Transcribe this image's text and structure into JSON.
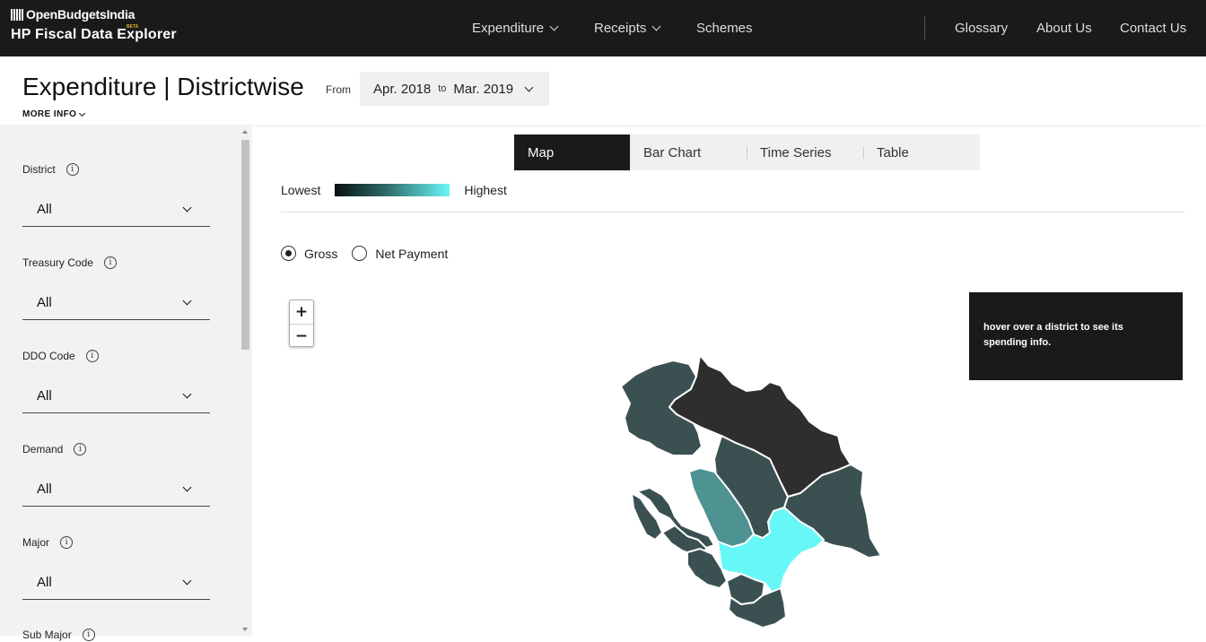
{
  "brand": {
    "name": "OpenBudgetsIndia",
    "badge": "BETA",
    "product": "HP Fiscal Data Explorer"
  },
  "nav": {
    "expenditure": "Expenditure",
    "receipts": "Receipts",
    "schemes": "Schemes",
    "glossary": "Glossary",
    "about": "About Us",
    "contact": "Contact Us"
  },
  "header": {
    "title": "Expenditure | Districtwise",
    "from_label": "From",
    "date_from": "Apr. 2018",
    "date_to_label": "to",
    "date_to": "Mar. 2019",
    "more_info": "MORE INFO"
  },
  "filters": [
    {
      "label": "District",
      "value": "All"
    },
    {
      "label": "Treasury Code",
      "value": "All"
    },
    {
      "label": "DDO Code",
      "value": "All"
    },
    {
      "label": "Demand",
      "value": "All"
    },
    {
      "label": "Major",
      "value": "All"
    },
    {
      "label": "Sub Major",
      "value": ""
    }
  ],
  "tabs": [
    "Map",
    "Bar Chart",
    "Time Series",
    "Table"
  ],
  "active_tab": "Map",
  "legend": {
    "low": "Lowest",
    "high": "Highest",
    "color_low": "#0a0f10",
    "color_high": "#68f7f7"
  },
  "payment_type": {
    "options": [
      "Gross",
      "Net Payment"
    ],
    "selected": "Gross"
  },
  "zoom": {
    "in": "+",
    "out": "−"
  },
  "hover_info": "hover over a district to see its spending info.",
  "map_colors": {
    "darkest": "#2e2e2e",
    "dark": "#3b5051",
    "medium": "#4e9292",
    "highest": "#68f7f7"
  }
}
